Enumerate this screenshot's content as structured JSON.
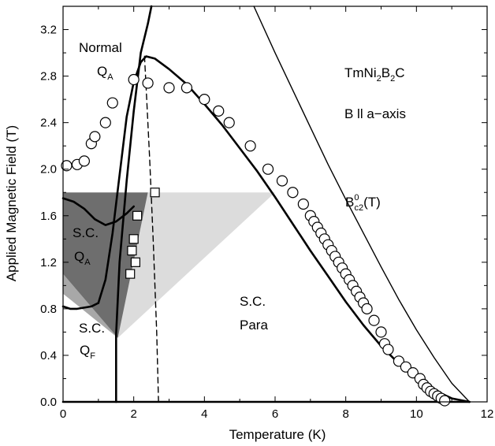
{
  "chart_data": {
    "type": "phase-diagram",
    "xlabel": "Temperature (K)",
    "ylabel": "Applied Magnetic Field (T)",
    "xlim": [
      0,
      12
    ],
    "ylim": [
      0,
      3.4
    ],
    "xticks": [
      0,
      2,
      4,
      6,
      8,
      10,
      12
    ],
    "yticks": [
      0.0,
      0.4,
      0.8,
      1.2,
      1.6,
      2.0,
      2.4,
      2.8,
      3.2
    ],
    "ytick_labels": [
      "0.0",
      "0.4",
      "0.8",
      "1.2",
      "1.6",
      "2.0",
      "2.4",
      "2.8",
      "3.2"
    ],
    "minor_ticks": true,
    "annotations": {
      "normal": "Normal",
      "q_main": "Q",
      "q_sub_a": "A",
      "q_sub_f": "F",
      "compound_prefix": "TmNi",
      "compound_sub1": "2",
      "compound_mid": "B",
      "compound_sub2": "2",
      "compound_suffix": "C",
      "orientation": "B ll a−axis",
      "bc2_main": "B",
      "bc2_sup": "0",
      "bc2_sub": "c2",
      "bc2_arg": "(T)",
      "sc": "S.C.",
      "sc_para_1": "S.C.",
      "sc_para_2": "Para"
    },
    "series": [
      {
        "style": "thick-line",
        "x": [
          0.0,
          0.3,
          0.6,
          0.9,
          1.2,
          1.5,
          1.8,
          2.0,
          2.2,
          2.35,
          2.5,
          3.0,
          3.5,
          4.0,
          4.5,
          5.0,
          5.5,
          6.0,
          6.5,
          7.0,
          7.5,
          8.0,
          8.5,
          9.0,
          9.5,
          10.0,
          10.5,
          11.0,
          11.5
        ],
        "y": [
          0.0,
          0.0,
          0.0,
          0.0,
          0.0,
          0.0,
          0.0,
          0.0,
          0.0,
          0.0,
          0.0,
          0.0,
          0.0,
          0.0,
          0.0,
          0.0,
          0.0,
          0.0,
          0.0,
          0.0,
          0.0,
          0.0,
          0.0,
          0.0,
          0.0,
          0.0,
          0.0,
          0.0,
          0.0
        ]
      },
      {
        "style": "thick-line",
        "x": [
          1.0,
          1.2,
          1.4,
          1.6,
          1.8,
          2.0,
          2.2,
          2.35,
          2.6,
          3.0,
          3.5,
          4.0,
          4.5,
          5.0,
          5.5,
          6.0,
          6.5,
          7.0,
          7.5,
          8.0,
          8.5,
          9.0,
          9.5,
          10.0,
          10.5,
          11.0,
          11.5
        ],
        "y": [
          0.85,
          1.05,
          1.45,
          1.95,
          2.45,
          2.75,
          2.92,
          2.97,
          2.95,
          2.86,
          2.73,
          2.56,
          2.38,
          2.18,
          1.98,
          1.76,
          1.53,
          1.3,
          1.08,
          0.86,
          0.66,
          0.48,
          0.33,
          0.2,
          0.1,
          0.03,
          0.0
        ]
      },
      {
        "style": "thick-line",
        "x": [
          0.0,
          0.2,
          0.4,
          0.6,
          0.8,
          1.0
        ],
        "y": [
          0.82,
          0.8,
          0.8,
          0.81,
          0.82,
          0.85
        ]
      },
      {
        "style": "thick-line",
        "x": [
          1.5,
          1.5,
          1.6,
          1.8,
          2.0,
          2.2,
          2.4,
          2.5
        ],
        "y": [
          0.0,
          0.58,
          1.2,
          1.9,
          2.5,
          3.0,
          3.25,
          3.4
        ]
      },
      {
        "style": "thick-line",
        "x": [
          0.0,
          0.3,
          0.6,
          0.9,
          1.2,
          1.5,
          1.8,
          2.0
        ],
        "y": [
          1.75,
          1.72,
          1.66,
          1.57,
          1.52,
          1.55,
          1.62,
          1.68
        ]
      },
      {
        "style": "dashed-line",
        "x": [
          2.7,
          2.65,
          2.55,
          2.45,
          2.35,
          2.3
        ],
        "y": [
          0.0,
          0.6,
          1.4,
          2.1,
          2.7,
          3.0
        ]
      },
      {
        "style": "thin-line",
        "x": [
          5.4,
          6.0,
          6.5,
          7.0,
          7.5,
          8.0,
          8.5,
          9.0,
          9.5,
          10.0,
          10.5,
          11.0,
          11.5
        ],
        "y": [
          3.4,
          3.0,
          2.68,
          2.36,
          2.04,
          1.74,
          1.45,
          1.16,
          0.88,
          0.62,
          0.38,
          0.16,
          0.0
        ]
      },
      {
        "style": "circles",
        "x": [
          0.1,
          0.4,
          0.6,
          0.8,
          0.9,
          1.2,
          1.4,
          2.0,
          2.4,
          3.0,
          3.5,
          4.0,
          4.4,
          4.7,
          5.3,
          5.8,
          6.2,
          6.5,
          6.8,
          7.0,
          7.1,
          7.2,
          7.3,
          7.4,
          7.5,
          7.6,
          7.7,
          7.8,
          7.9,
          8.0,
          8.1,
          8.2,
          8.3,
          8.4,
          8.5,
          8.6,
          8.8,
          9.0,
          9.1,
          9.2,
          9.5,
          9.7,
          9.9,
          10.1,
          10.2,
          10.3,
          10.4,
          10.5,
          10.6,
          10.7,
          10.8
        ],
        "y": [
          2.03,
          2.04,
          2.07,
          2.22,
          2.28,
          2.4,
          2.57,
          2.77,
          2.74,
          2.7,
          2.7,
          2.6,
          2.5,
          2.4,
          2.2,
          2.0,
          1.9,
          1.8,
          1.7,
          1.6,
          1.55,
          1.5,
          1.45,
          1.4,
          1.35,
          1.3,
          1.25,
          1.2,
          1.15,
          1.1,
          1.05,
          1.0,
          0.95,
          0.9,
          0.85,
          0.8,
          0.7,
          0.6,
          0.5,
          0.45,
          0.35,
          0.3,
          0.25,
          0.2,
          0.15,
          0.12,
          0.09,
          0.07,
          0.05,
          0.03,
          0.01
        ]
      },
      {
        "style": "squares",
        "x": [
          2.6,
          2.1,
          2.0,
          1.95,
          2.05,
          1.9
        ],
        "y": [
          1.8,
          1.6,
          1.4,
          1.3,
          1.2,
          1.1
        ]
      },
      {
        "style": "dark-shade",
        "x": [
          0.0,
          2.4,
          1.55,
          0.0
        ],
        "y": [
          1.8,
          1.8,
          0.55,
          1.1
        ]
      },
      {
        "style": "mid-shade",
        "x": [
          0.0,
          1.55,
          0.0
        ],
        "y": [
          1.1,
          0.55,
          0.93
        ]
      },
      {
        "style": "light-shade",
        "x": [
          2.4,
          6.0,
          1.55
        ],
        "y": [
          1.8,
          1.8,
          0.55
        ]
      }
    ]
  }
}
